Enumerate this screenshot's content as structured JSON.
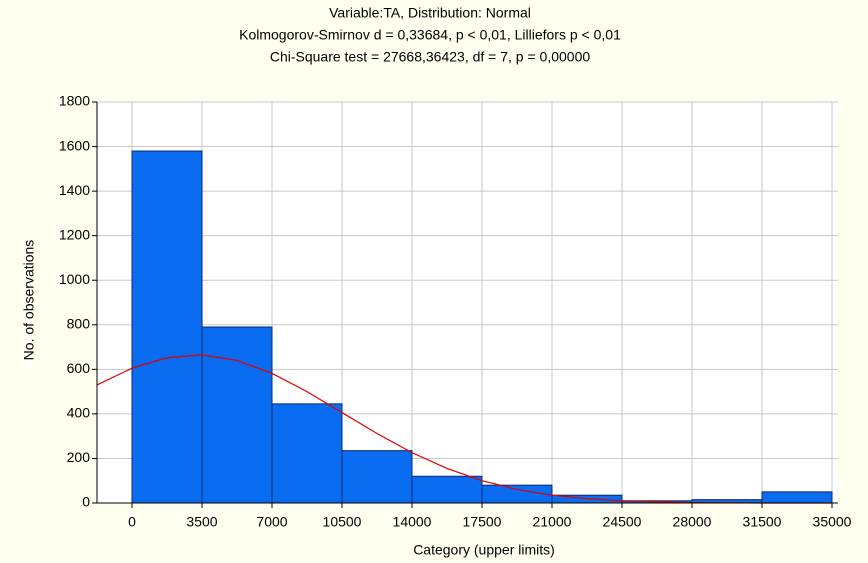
{
  "chart_data": {
    "type": "histogram",
    "title": [
      "Variable:TA, Distribution: Normal",
      "Kolmogorov-Smirnov d = 0,33684, p < 0,01, Lilliefors p < 0,01",
      "Chi-Square test = 27668,36423, df = 7, p = 0,00000"
    ],
    "x_label": "Category (upper limits)",
    "y_label": "No. of observations",
    "bins": [
      0,
      3500,
      7000,
      10500,
      14000,
      17500,
      21000,
      24500,
      28000,
      31500,
      35000
    ],
    "values": [
      1580,
      790,
      445,
      235,
      120,
      80,
      35,
      10,
      15,
      50
    ],
    "color": "#0a6cf0",
    "curve": {
      "color": "#e00000",
      "x": [
        -1750,
        0,
        1750,
        3500,
        5250,
        7000,
        8750,
        10500,
        12250,
        14000,
        15750,
        17500,
        19250,
        21000,
        22750,
        24500,
        26250,
        28000,
        29750,
        31500,
        33250,
        35000
      ],
      "values": [
        530,
        605,
        652,
        665,
        640,
        582,
        500,
        406,
        312,
        226,
        155,
        100,
        61,
        35,
        19,
        10,
        5,
        2,
        1,
        0,
        0,
        0
      ]
    },
    "xlim": [
      -1750,
      35300
    ],
    "xticks": [
      0,
      3500,
      7000,
      10500,
      14000,
      17500,
      21000,
      24500,
      28000,
      31500,
      35000
    ],
    "ylim": [
      0,
      1800
    ],
    "yticks": [
      0,
      200,
      400,
      600,
      800,
      1000,
      1200,
      1400,
      1600,
      1800
    ],
    "grid": true
  }
}
